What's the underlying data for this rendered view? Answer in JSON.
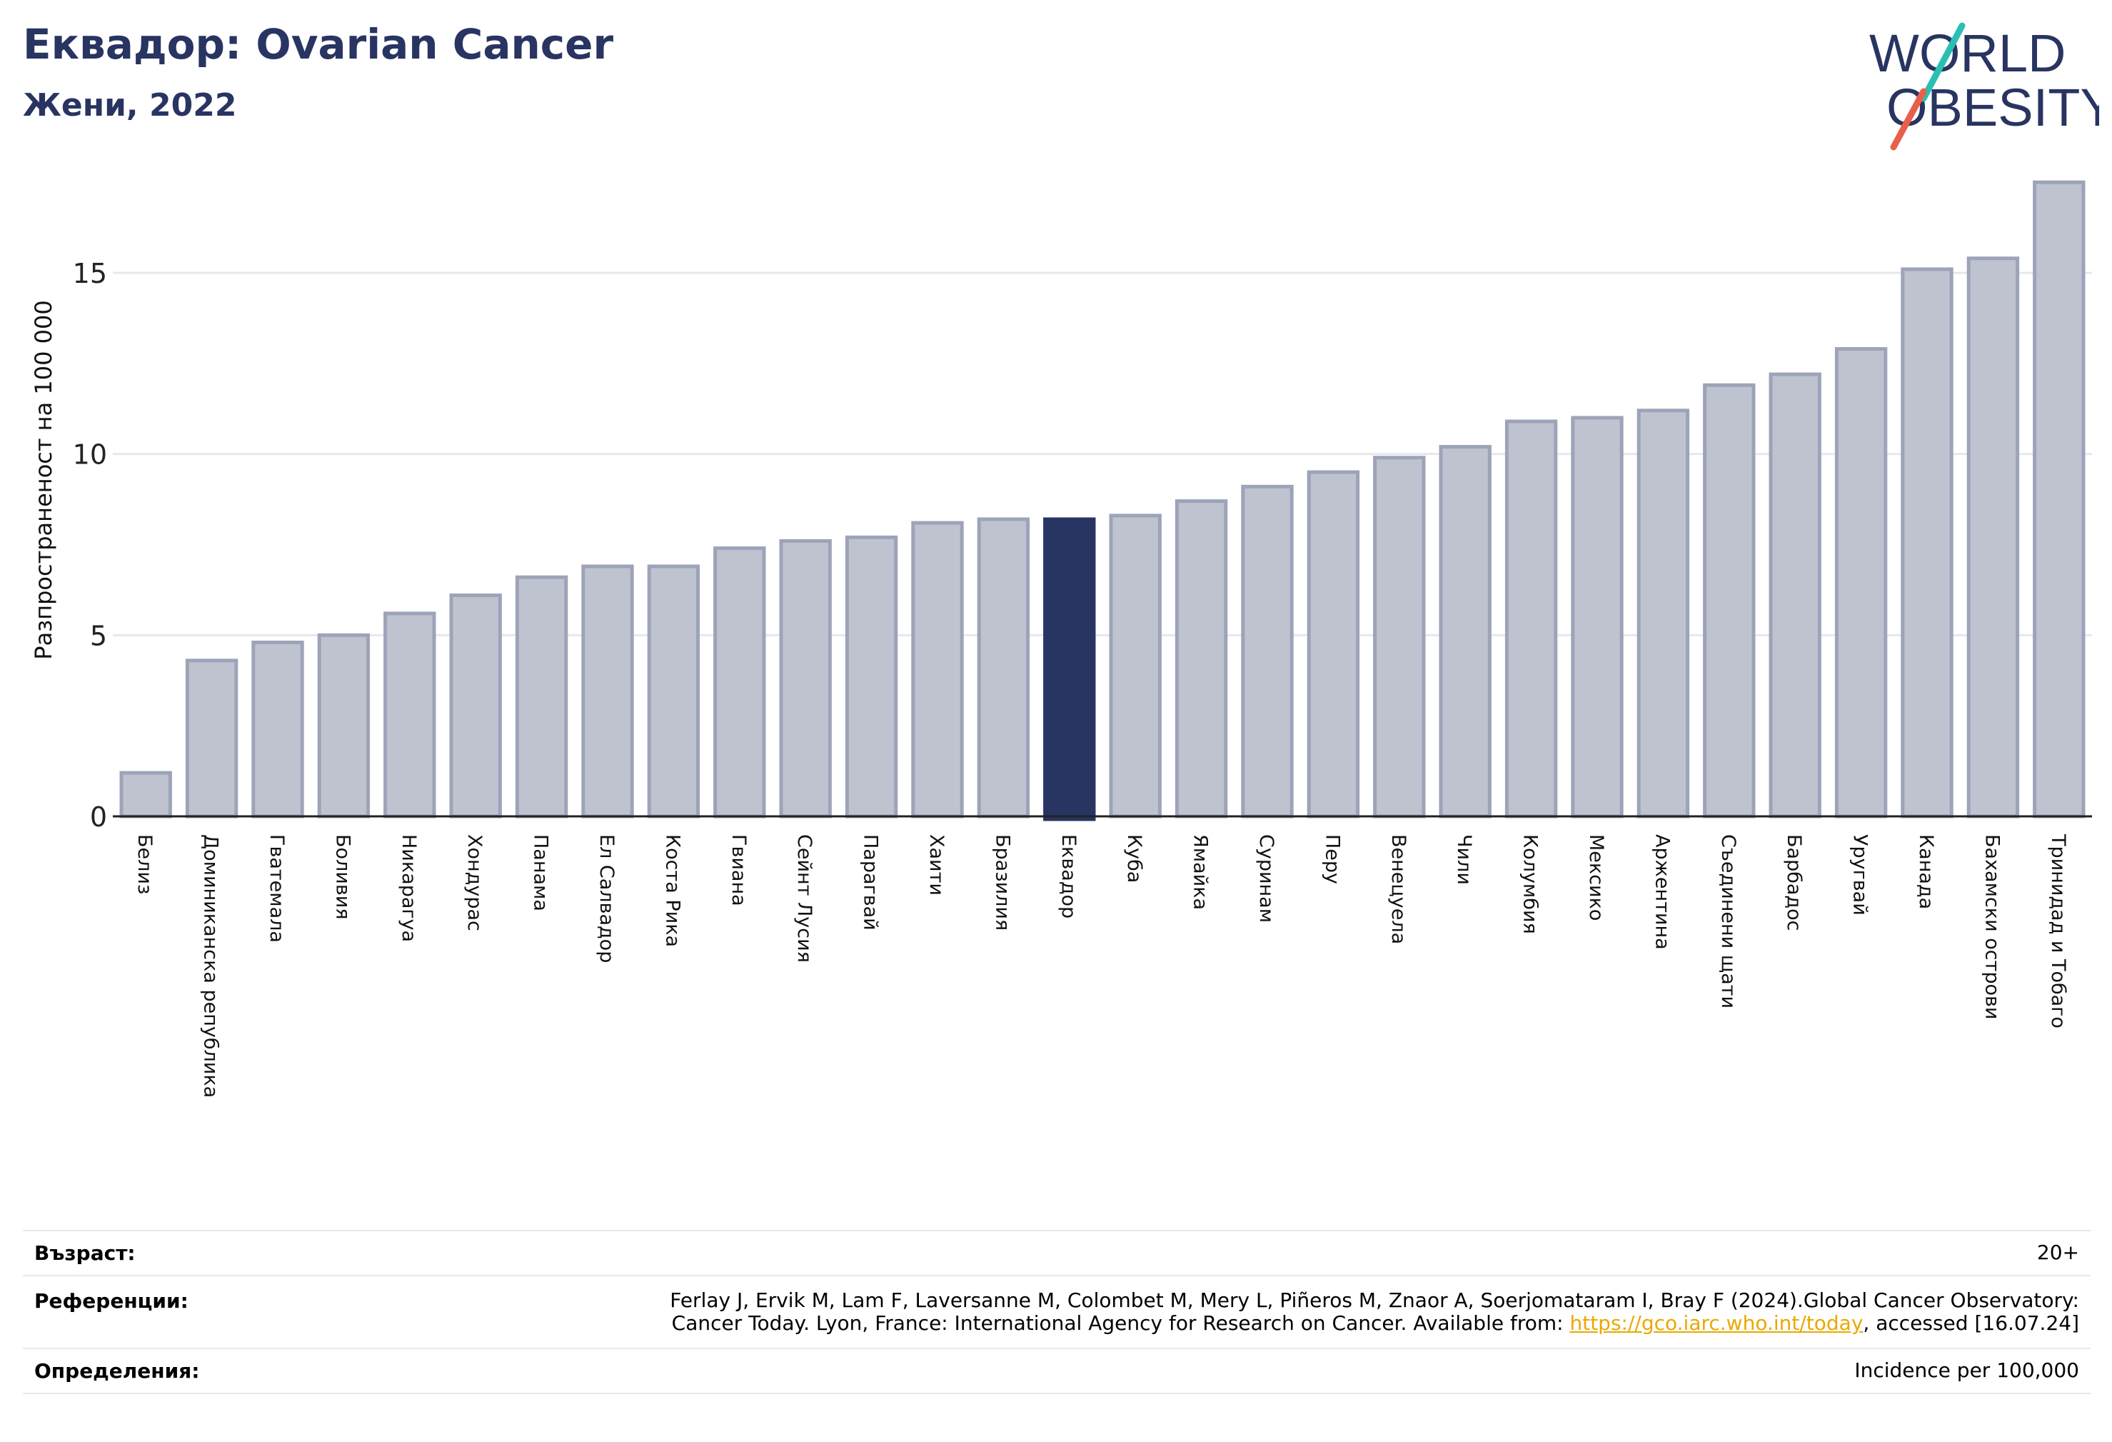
{
  "header": {
    "title": "Еквадор: Ovarian Cancer",
    "subtitle": "Жени, 2022"
  },
  "logo": {
    "line1": "WORLD",
    "line2": "OBESITY",
    "colors": {
      "text": "#283461",
      "teal": "#2bbfb3",
      "coral": "#e8604c"
    }
  },
  "chart_data": {
    "type": "bar",
    "ylabel": "Разпространеност  на 100 000",
    "ylim": [
      0,
      18
    ],
    "yticks": [
      0,
      5,
      10,
      15
    ],
    "grid": true,
    "highlight": "Еквадор",
    "colors": {
      "bar": "#bfc3d0",
      "bar_edge": "#9da3b8",
      "highlight": "#283461"
    },
    "categories": [
      "Белиз",
      "Доминиканска република",
      "Гватемала",
      "Боливия",
      "Никарагуа",
      "Хондурас",
      "Панама",
      "Ел Салвадор",
      "Коста Рика",
      "Гвиана",
      "Сейнт Лусия",
      "Парагвай",
      "Хаити",
      "Бразилия",
      "Еквадор",
      "Куба",
      "Ямайка",
      "Суринам",
      "Перу",
      "Венецуела",
      "Чили",
      "Колумбия",
      "Мексико",
      "Аржентина",
      "Съединени щати",
      "Барбадос",
      "Уругвай",
      "Канада",
      "Бахамски острови",
      "Тринидад и Тобаго"
    ],
    "values": [
      1.2,
      4.3,
      4.8,
      5.0,
      5.6,
      6.1,
      6.6,
      6.9,
      6.9,
      7.4,
      7.6,
      7.7,
      8.1,
      8.2,
      8.2,
      8.3,
      8.7,
      9.1,
      9.5,
      9.9,
      10.2,
      10.9,
      11.0,
      11.2,
      11.9,
      12.2,
      12.9,
      15.1,
      15.4,
      17.5
    ]
  },
  "footer": {
    "age_label": "Възраст:",
    "age_value": "20+",
    "ref_label": "Референции:",
    "ref_text_1": "Ferlay J, Ervik M, Lam F, Laversanne M, Colombet M, Mery L, Piñeros M, Znaor A, Soerjomataram I, Bray F (2024).Global Cancer Observatory:",
    "ref_text_2": "Cancer Today. Lyon, France: International Agency for Research on Cancer. Available from: ",
    "ref_link": "https://gco.iarc.who.int/today",
    "ref_text_3": ", accessed [16.07.24]",
    "def_label": "Определения:",
    "def_value": "Incidence per 100,000"
  }
}
